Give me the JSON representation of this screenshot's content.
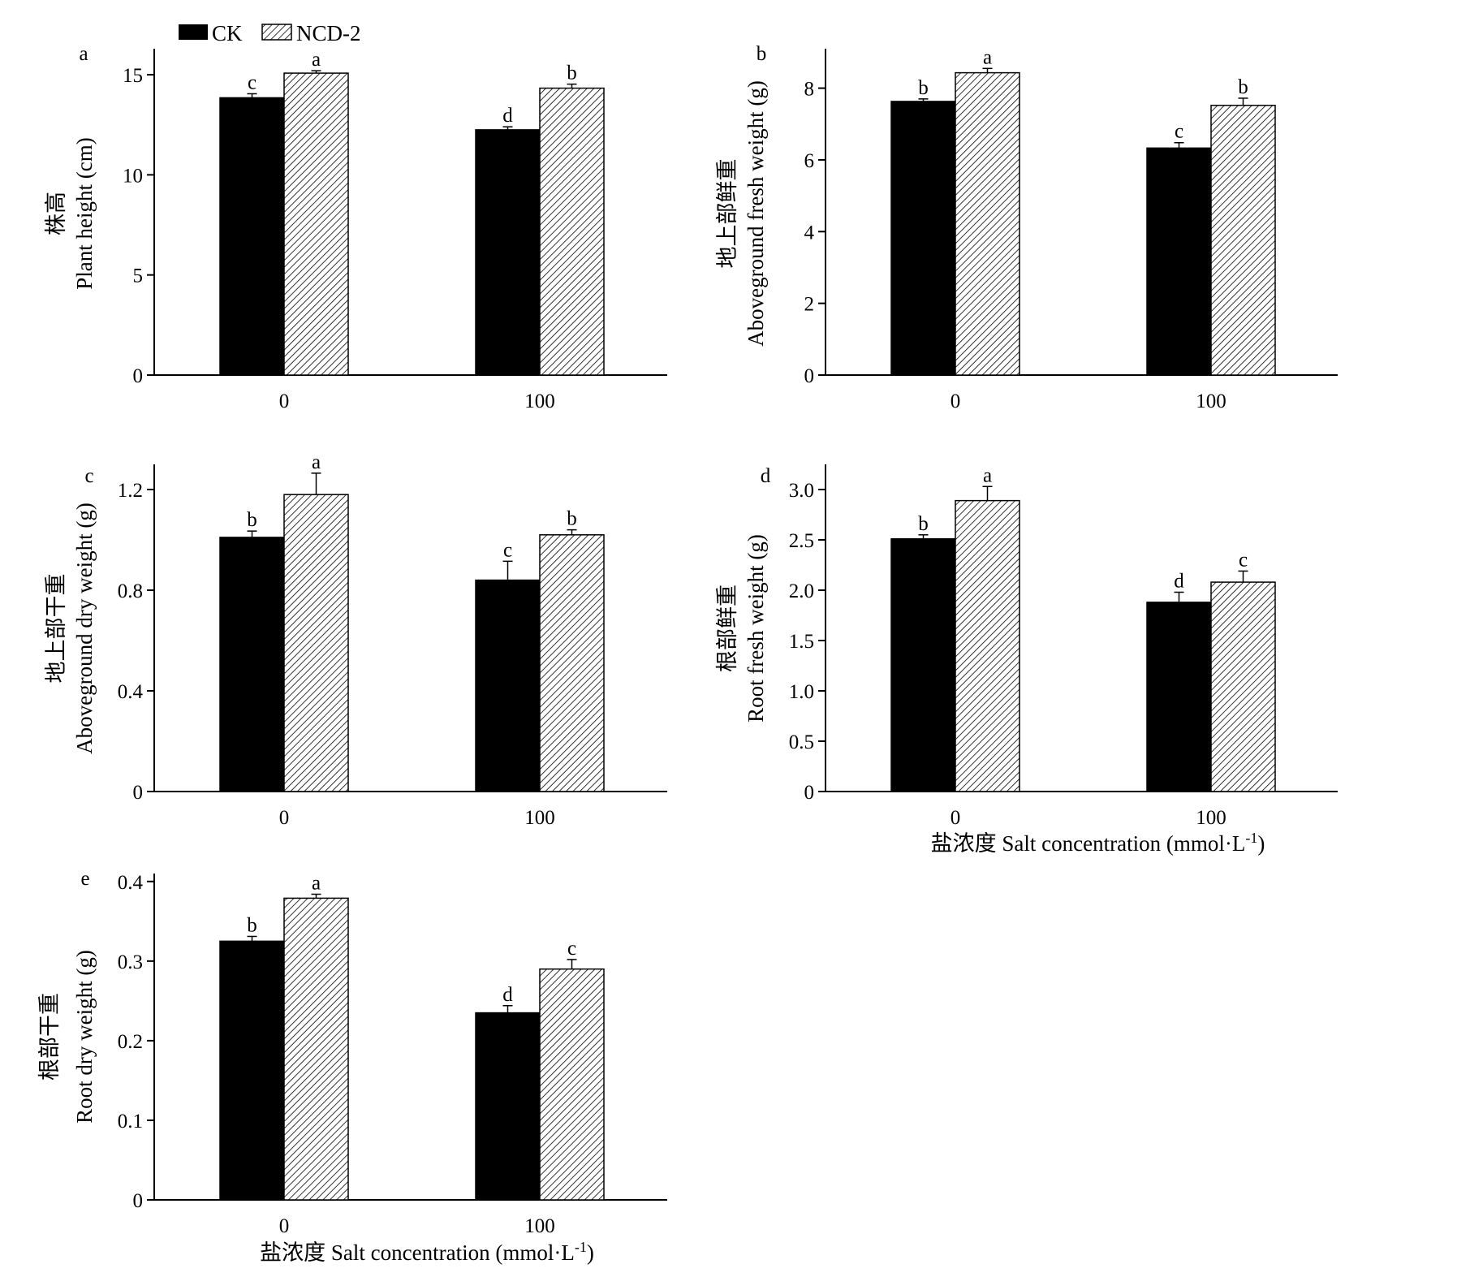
{
  "legend": {
    "entries": [
      {
        "name": "CK",
        "fill": "#000000"
      },
      {
        "name": "NCD-2",
        "fill": "hatch"
      }
    ]
  },
  "chart_data": [
    {
      "type": "bar",
      "panel": "a",
      "categories": [
        "0",
        "100"
      ],
      "ylabel_cn": "株高",
      "ylabel_en": "Plant height (cm)",
      "xlabel": "",
      "ylim": [
        0,
        16.3
      ],
      "yticks": [
        "0",
        "5",
        "10",
        "15"
      ],
      "ytick_values": [
        0,
        5,
        10,
        15
      ],
      "series": [
        {
          "name": "CK",
          "values": [
            13.85,
            12.25
          ],
          "errors": [
            0.2,
            0.15
          ],
          "letters": [
            "c",
            "d"
          ]
        },
        {
          "name": "NCD-2",
          "values": [
            15.08,
            14.33
          ],
          "errors": [
            0.12,
            0.2
          ],
          "letters": [
            "a",
            "b"
          ]
        }
      ]
    },
    {
      "type": "bar",
      "panel": "b",
      "categories": [
        "0",
        "100"
      ],
      "ylabel_cn": "地上部鲜重",
      "ylabel_en": "Aboveground fresh weight (g)",
      "xlabel": "",
      "ylim": [
        0,
        9.1
      ],
      "yticks": [
        "0",
        "2",
        "4",
        "6",
        "8"
      ],
      "ytick_values": [
        0,
        2,
        4,
        6,
        8
      ],
      "series": [
        {
          "name": "CK",
          "values": [
            7.63,
            6.33
          ],
          "errors": [
            0.07,
            0.15
          ],
          "letters": [
            "b",
            "c"
          ]
        },
        {
          "name": "NCD-2",
          "values": [
            8.43,
            7.52
          ],
          "errors": [
            0.12,
            0.2
          ],
          "letters": [
            "a",
            "b"
          ]
        }
      ]
    },
    {
      "type": "bar",
      "panel": "c",
      "categories": [
        "0",
        "100"
      ],
      "ylabel_cn": "地上部干重",
      "ylabel_en": "Aboveground dry weight (g)",
      "xlabel": "",
      "ylim": [
        0,
        1.3
      ],
      "yticks": [
        "0",
        "0.4",
        "0.8",
        "1.2"
      ],
      "ytick_values": [
        0,
        0.4,
        0.8,
        1.2
      ],
      "series": [
        {
          "name": "CK",
          "values": [
            1.01,
            0.84
          ],
          "errors": [
            0.025,
            0.075
          ],
          "letters": [
            "b",
            "c"
          ]
        },
        {
          "name": "NCD-2",
          "values": [
            1.18,
            1.02
          ],
          "errors": [
            0.085,
            0.02
          ],
          "letters": [
            "a",
            "b"
          ]
        }
      ]
    },
    {
      "type": "bar",
      "panel": "d",
      "categories": [
        "0",
        "100"
      ],
      "ylabel_cn": "根部鲜重",
      "ylabel_en": "Root fresh weight (g)",
      "xlabel": "盐浓度 Salt concentration (mmol·L",
      "xlabel_sup": "-1",
      "xlabel_end": ")",
      "ylim": [
        0,
        3.25
      ],
      "yticks": [
        "0",
        "0.5",
        "1.0",
        "1.5",
        "2.0",
        "2.5",
        "3.0"
      ],
      "ytick_values": [
        0,
        0.5,
        1.0,
        1.5,
        2.0,
        2.5,
        3.0
      ],
      "series": [
        {
          "name": "CK",
          "values": [
            2.51,
            1.88
          ],
          "errors": [
            0.04,
            0.1
          ],
          "letters": [
            "b",
            "d"
          ]
        },
        {
          "name": "NCD-2",
          "values": [
            2.89,
            2.08
          ],
          "errors": [
            0.14,
            0.11
          ],
          "letters": [
            "a",
            "c"
          ]
        }
      ]
    },
    {
      "type": "bar",
      "panel": "e",
      "categories": [
        "0",
        "100"
      ],
      "ylabel_cn": "根部干重",
      "ylabel_en": "Root dry weight (g)",
      "xlabel": "盐浓度 Salt concentration (mmol·L",
      "xlabel_sup": "-1",
      "xlabel_end": ")",
      "ylim": [
        0,
        0.41
      ],
      "yticks": [
        "0",
        "0.1",
        "0.2",
        "0.3",
        "0.4"
      ],
      "ytick_values": [
        0,
        0.1,
        0.2,
        0.3,
        0.4
      ],
      "series": [
        {
          "name": "CK",
          "values": [
            0.325,
            0.235
          ],
          "errors": [
            0.006,
            0.009
          ],
          "letters": [
            "b",
            "d"
          ]
        },
        {
          "name": "NCD-2",
          "values": [
            0.379,
            0.29
          ],
          "errors": [
            0.005,
            0.012
          ],
          "letters": [
            "a",
            "c"
          ]
        }
      ]
    }
  ]
}
